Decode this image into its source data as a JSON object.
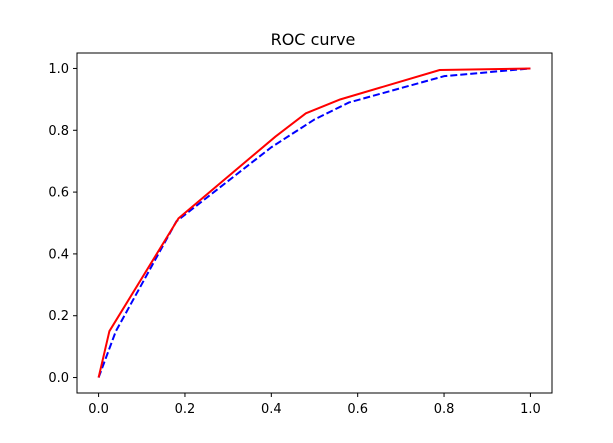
{
  "chart_data": {
    "type": "line",
    "title": "ROC curve",
    "xlabel": "",
    "ylabel": "",
    "xlim": [
      -0.05,
      1.05
    ],
    "ylim": [
      -0.05,
      1.05
    ],
    "grid": false,
    "x_ticks": [
      0.0,
      0.2,
      0.4,
      0.6,
      0.8,
      1.0
    ],
    "x_tick_labels": [
      "0.0",
      "0.2",
      "0.4",
      "0.6",
      "0.8",
      "1.0"
    ],
    "y_ticks": [
      0.0,
      0.2,
      0.4,
      0.6,
      0.8,
      1.0
    ],
    "y_tick_labels": [
      "0.0",
      "0.2",
      "0.4",
      "0.6",
      "0.8",
      "1.0"
    ],
    "series": [
      {
        "color": "#0000ff",
        "line_style": "dashed",
        "x": [
          0.0,
          0.04,
          0.18,
          0.4,
          0.5,
          0.58,
          0.8,
          1.0
        ],
        "y": [
          0.0,
          0.15,
          0.505,
          0.745,
          0.835,
          0.89,
          0.975,
          1.0
        ]
      },
      {
        "color": "#ff0000",
        "line_style": "solid",
        "x": [
          0.0,
          0.025,
          0.185,
          0.41,
          0.48,
          0.56,
          0.79,
          1.0
        ],
        "y": [
          0.0,
          0.15,
          0.515,
          0.78,
          0.855,
          0.9,
          0.995,
          1.0
        ]
      }
    ]
  }
}
